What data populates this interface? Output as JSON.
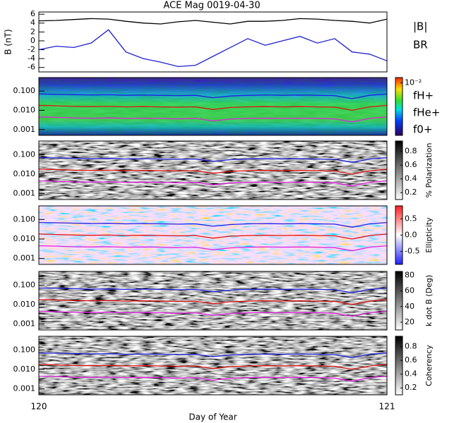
{
  "chart_data": [
    {
      "type": "line",
      "title": "ACE Mag 0019-04-30",
      "ylabel": "B (nT)",
      "x": [
        120,
        120.05,
        120.1,
        120.15,
        120.2,
        120.25,
        120.3,
        120.35,
        120.4,
        120.45,
        120.5,
        120.55,
        120.6,
        120.65,
        120.7,
        120.75,
        120.8,
        120.85,
        120.9,
        120.95,
        121
      ],
      "xlim": [
        120,
        121
      ],
      "ylim": [
        -7,
        6.5
      ],
      "yticks": [
        6,
        4,
        2,
        0,
        -2,
        -4,
        -6
      ],
      "series": [
        {
          "name": "|B|",
          "color": "#000000",
          "values": [
            4.5,
            4.6,
            4.8,
            5.0,
            4.9,
            4.4,
            4.0,
            3.8,
            4.3,
            4.6,
            4.2,
            3.8,
            4.4,
            4.4,
            4.6,
            5.0,
            4.9,
            4.6,
            4.4,
            4.0,
            4.9
          ]
        },
        {
          "name": "BR",
          "color": "#1f1fd0",
          "values": [
            -2.0,
            -1.2,
            -1.5,
            -0.5,
            2.5,
            -2.5,
            -4.0,
            -4.8,
            -5.8,
            -5.5,
            -3.5,
            -1.5,
            0.5,
            -1.0,
            0.0,
            1.0,
            -0.5,
            0.5,
            -2.5,
            -3.0,
            -4.5
          ]
        }
      ]
    },
    {
      "type": "line",
      "log_y": true,
      "x": [
        120,
        120.05,
        120.1,
        120.15,
        120.2,
        120.25,
        120.3,
        120.35,
        120.4,
        120.45,
        120.5,
        120.55,
        120.6,
        120.65,
        120.7,
        120.75,
        120.8,
        120.85,
        120.9,
        120.95,
        121
      ],
      "xlim": [
        120,
        121
      ],
      "ylim": [
        0.0005,
        0.5
      ],
      "yticks": [
        {
          "value": 0.1,
          "label": "0.100"
        },
        {
          "value": 0.01,
          "label": "0.010"
        },
        0.001
      ],
      "colorbar": {
        "lim": [
          -7,
          -1.5
        ],
        "ticks": [
          {
            "value": -2,
            "label": "10⁻²"
          }
        ]
      },
      "series": [
        {
          "name": "fH+",
          "color": "#1f1fe0",
          "values": [
            0.07,
            0.068,
            0.065,
            0.062,
            0.064,
            0.06,
            0.062,
            0.06,
            0.058,
            0.06,
            0.045,
            0.055,
            0.06,
            0.062,
            0.06,
            0.062,
            0.06,
            0.058,
            0.04,
            0.06,
            0.07
          ]
        },
        {
          "name": "fHe+",
          "color": "#e01010",
          "values": [
            0.018,
            0.017,
            0.016,
            0.0155,
            0.016,
            0.015,
            0.0155,
            0.015,
            0.0145,
            0.015,
            0.011,
            0.014,
            0.015,
            0.0155,
            0.015,
            0.0155,
            0.015,
            0.0145,
            0.01,
            0.015,
            0.018
          ]
        },
        {
          "name": "f0+",
          "color": "#e020e0",
          "values": [
            0.0045,
            0.0043,
            0.004,
            0.0039,
            0.004,
            0.0038,
            0.0039,
            0.0038,
            0.0036,
            0.0038,
            0.0028,
            0.0035,
            0.0038,
            0.0039,
            0.0038,
            0.0039,
            0.0038,
            0.0036,
            0.0025,
            0.0038,
            0.0045
          ]
        }
      ]
    },
    {
      "type": "line",
      "log_y": true,
      "x": [
        120,
        120.05,
        120.1,
        120.15,
        120.2,
        120.25,
        120.3,
        120.35,
        120.4,
        120.45,
        120.5,
        120.55,
        120.6,
        120.65,
        120.7,
        120.75,
        120.8,
        120.85,
        120.9,
        120.95,
        121
      ],
      "xlim": [
        120,
        121
      ],
      "ylim": [
        0.0005,
        0.5
      ],
      "yticks": [
        {
          "value": 0.1,
          "label": "0.100"
        },
        {
          "value": 0.01,
          "label": "0.010"
        },
        0.001
      ],
      "colorbar": {
        "label": "% Polarization",
        "lim": [
          0.1,
          0.95
        ],
        "ticks": [
          0.2,
          0.4,
          0.6,
          0.8
        ]
      },
      "series": [
        {
          "color": "#1f1fe0",
          "values": [
            0.07,
            0.068,
            0.065,
            0.062,
            0.064,
            0.06,
            0.062,
            0.06,
            0.058,
            0.06,
            0.045,
            0.055,
            0.06,
            0.062,
            0.06,
            0.062,
            0.06,
            0.058,
            0.04,
            0.06,
            0.07
          ]
        },
        {
          "color": "#e01010",
          "values": [
            0.018,
            0.017,
            0.016,
            0.0155,
            0.016,
            0.015,
            0.0155,
            0.015,
            0.0145,
            0.015,
            0.011,
            0.014,
            0.015,
            0.0155,
            0.015,
            0.0155,
            0.015,
            0.0145,
            0.01,
            0.015,
            0.018
          ]
        },
        {
          "color": "#e020e0",
          "values": [
            0.0045,
            0.0043,
            0.004,
            0.0039,
            0.004,
            0.0038,
            0.0039,
            0.0038,
            0.0036,
            0.0038,
            0.0028,
            0.0035,
            0.0038,
            0.0039,
            0.0038,
            0.0039,
            0.0038,
            0.0036,
            0.0025,
            0.0038,
            0.0045
          ]
        }
      ]
    },
    {
      "type": "line",
      "log_y": true,
      "x": [
        120,
        120.05,
        120.1,
        120.15,
        120.2,
        120.25,
        120.3,
        120.35,
        120.4,
        120.45,
        120.5,
        120.55,
        120.6,
        120.65,
        120.7,
        120.75,
        120.8,
        120.85,
        120.9,
        120.95,
        121
      ],
      "xlim": [
        120,
        121
      ],
      "ylim": [
        0.0005,
        0.5
      ],
      "yticks": [
        {
          "value": 0.1,
          "label": "0.100"
        },
        {
          "value": 0.01,
          "label": "0.010"
        },
        0.001
      ],
      "colorbar": {
        "label": "Ellipticity",
        "lim": [
          -0.9,
          0.9
        ],
        "ticks": [
          0.5,
          {
            "value": 0,
            "label": "0.0"
          },
          -0.5
        ]
      },
      "series": [
        {
          "color": "#1f1fe0",
          "values": [
            0.07,
            0.068,
            0.065,
            0.062,
            0.064,
            0.06,
            0.062,
            0.06,
            0.058,
            0.06,
            0.045,
            0.055,
            0.06,
            0.062,
            0.06,
            0.062,
            0.06,
            0.058,
            0.04,
            0.06,
            0.07
          ]
        },
        {
          "color": "#e01010",
          "values": [
            0.018,
            0.017,
            0.016,
            0.0155,
            0.016,
            0.015,
            0.0155,
            0.015,
            0.0145,
            0.015,
            0.011,
            0.014,
            0.015,
            0.0155,
            0.015,
            0.0155,
            0.015,
            0.0145,
            0.01,
            0.015,
            0.018
          ]
        },
        {
          "color": "#e020e0",
          "values": [
            0.0045,
            0.0043,
            0.004,
            0.0039,
            0.004,
            0.0038,
            0.0039,
            0.0038,
            0.0036,
            0.0038,
            0.0028,
            0.0035,
            0.0038,
            0.0039,
            0.0038,
            0.0039,
            0.0038,
            0.0036,
            0.0025,
            0.0038,
            0.0045
          ]
        }
      ]
    },
    {
      "type": "line",
      "log_y": true,
      "x": [
        120,
        120.05,
        120.1,
        120.15,
        120.2,
        120.25,
        120.3,
        120.35,
        120.4,
        120.45,
        120.5,
        120.55,
        120.6,
        120.65,
        120.7,
        120.75,
        120.8,
        120.85,
        120.9,
        120.95,
        121
      ],
      "xlim": [
        120,
        121
      ],
      "ylim": [
        0.0005,
        0.5
      ],
      "yticks": [
        {
          "value": 0.1,
          "label": "0.100"
        },
        {
          "value": 0.01,
          "label": "0.010"
        },
        0.001
      ],
      "colorbar": {
        "label": "k dot B (Deg)",
        "lim": [
          10,
          85
        ],
        "ticks": [
          20,
          40,
          60,
          80
        ]
      },
      "series": [
        {
          "color": "#1f1fe0",
          "values": [
            0.07,
            0.068,
            0.065,
            0.062,
            0.064,
            0.06,
            0.062,
            0.06,
            0.058,
            0.06,
            0.045,
            0.055,
            0.06,
            0.062,
            0.06,
            0.062,
            0.06,
            0.058,
            0.04,
            0.06,
            0.07
          ]
        },
        {
          "color": "#e01010",
          "values": [
            0.018,
            0.017,
            0.016,
            0.0155,
            0.016,
            0.015,
            0.0155,
            0.015,
            0.0145,
            0.015,
            0.011,
            0.014,
            0.015,
            0.0155,
            0.015,
            0.0155,
            0.015,
            0.0145,
            0.01,
            0.015,
            0.018
          ]
        },
        {
          "color": "#e020e0",
          "values": [
            0.0045,
            0.0043,
            0.004,
            0.0039,
            0.004,
            0.0038,
            0.0039,
            0.0038,
            0.0036,
            0.0038,
            0.0028,
            0.0035,
            0.0038,
            0.0039,
            0.0038,
            0.0039,
            0.0038,
            0.0036,
            0.0025,
            0.0038,
            0.0045
          ]
        }
      ]
    },
    {
      "type": "line",
      "log_y": true,
      "xlabel": "Day of Year",
      "xticks": [
        120,
        121
      ],
      "x": [
        120,
        120.05,
        120.1,
        120.15,
        120.2,
        120.25,
        120.3,
        120.35,
        120.4,
        120.45,
        120.5,
        120.55,
        120.6,
        120.65,
        120.7,
        120.75,
        120.8,
        120.85,
        120.9,
        120.95,
        121
      ],
      "xlim": [
        120,
        121
      ],
      "ylim": [
        0.0005,
        0.5
      ],
      "yticks": [
        {
          "value": 0.1,
          "label": "0.100"
        },
        {
          "value": 0.01,
          "label": "0.010"
        },
        0.001
      ],
      "colorbar": {
        "label": "Coherency",
        "lim": [
          0.1,
          0.95
        ],
        "ticks": [
          0.2,
          0.4,
          0.6,
          0.8
        ]
      },
      "series": [
        {
          "color": "#1f1fe0",
          "values": [
            0.07,
            0.068,
            0.065,
            0.062,
            0.064,
            0.06,
            0.062,
            0.06,
            0.058,
            0.06,
            0.045,
            0.055,
            0.06,
            0.062,
            0.06,
            0.062,
            0.06,
            0.058,
            0.04,
            0.06,
            0.07
          ]
        },
        {
          "color": "#e01010",
          "values": [
            0.018,
            0.017,
            0.016,
            0.0155,
            0.016,
            0.015,
            0.0155,
            0.015,
            0.0145,
            0.015,
            0.011,
            0.014,
            0.015,
            0.0155,
            0.015,
            0.0155,
            0.015,
            0.0145,
            0.01,
            0.015,
            0.018
          ]
        },
        {
          "color": "#e020e0",
          "values": [
            0.0045,
            0.0043,
            0.004,
            0.0039,
            0.004,
            0.0038,
            0.0039,
            0.0038,
            0.0036,
            0.0038,
            0.0028,
            0.0035,
            0.0038,
            0.0039,
            0.0038,
            0.0039,
            0.0038,
            0.0036,
            0.0025,
            0.0038,
            0.0045
          ]
        }
      ]
    }
  ]
}
